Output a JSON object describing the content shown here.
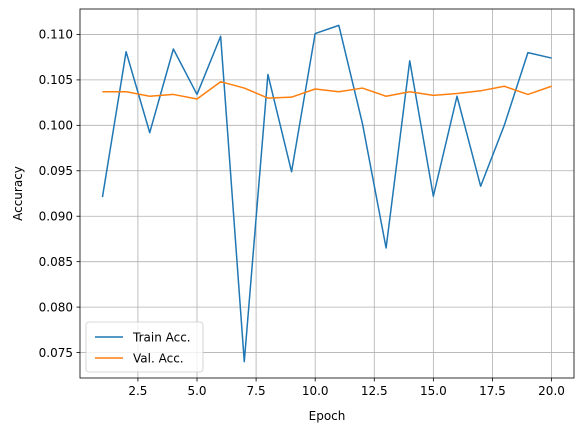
{
  "chart_data": {
    "type": "line",
    "xlabel": "Epoch",
    "ylabel": "Accuracy",
    "xlim": [
      0.05,
      20.95
    ],
    "ylim": [
      0.0722,
      0.1128
    ],
    "x_ticks": [
      2.5,
      5.0,
      7.5,
      10.0,
      12.5,
      15.0,
      17.5,
      20.0
    ],
    "x_tick_labels": [
      "2.5",
      "5.0",
      "7.5",
      "10.0",
      "12.5",
      "15.0",
      "17.5",
      "20.0"
    ],
    "y_ticks": [
      0.075,
      0.08,
      0.085,
      0.09,
      0.095,
      0.1,
      0.105,
      0.11
    ],
    "y_tick_labels": [
      "0.075",
      "0.080",
      "0.085",
      "0.090",
      "0.095",
      "0.100",
      "0.105",
      "0.110"
    ],
    "grid": true,
    "legend_position": "lower-left",
    "x": [
      1,
      2,
      3,
      4,
      5,
      6,
      7,
      8,
      9,
      10,
      11,
      12,
      13,
      14,
      15,
      16,
      17,
      18,
      19,
      20
    ],
    "series": [
      {
        "name": "Train Acc.",
        "color": "#1f77b4",
        "values": [
          0.0921,
          0.1081,
          0.0992,
          0.1084,
          0.1034,
          0.1098,
          0.074,
          0.1056,
          0.0949,
          0.1101,
          0.111,
          0.1002,
          0.0865,
          0.1071,
          0.0922,
          0.1032,
          0.0933,
          0.1,
          0.108,
          0.1074
        ]
      },
      {
        "name": "Val. Acc.",
        "color": "#ff7f0e",
        "values": [
          0.1037,
          0.1037,
          0.1032,
          0.1034,
          0.1029,
          0.1048,
          0.1041,
          0.103,
          0.1031,
          0.104,
          0.1037,
          0.1041,
          0.1032,
          0.1037,
          0.1033,
          0.1035,
          0.1038,
          0.1043,
          0.1034,
          0.1043
        ]
      }
    ]
  }
}
